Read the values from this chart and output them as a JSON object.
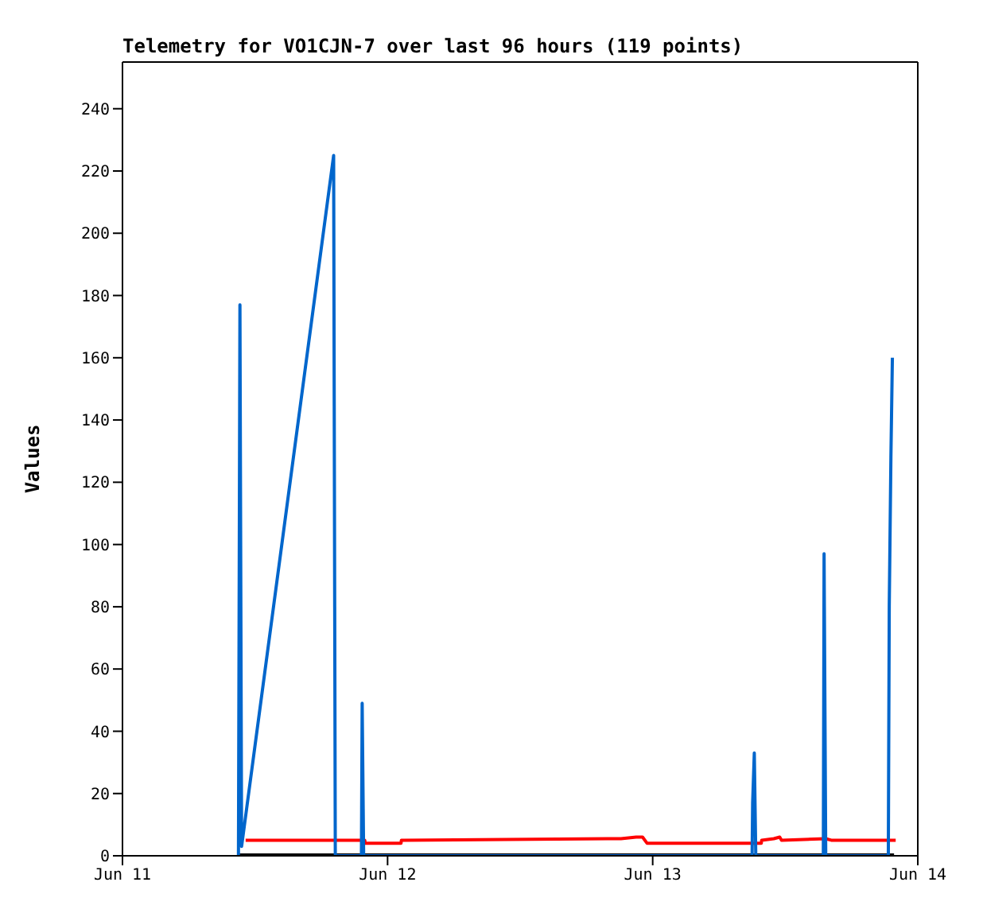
{
  "chart_data": {
    "type": "line",
    "title": "Telemetry for VO1CJN-7 over last 96 hours (119 points)",
    "ylabel": "Values",
    "xlim": [
      "--06-11T00:00",
      "--06-14T00:00"
    ],
    "xticks": [
      {
        "value": "--06-11T00:00",
        "label": "Jun 11"
      },
      {
        "value": "--06-12T00:00",
        "label": "Jun 12"
      },
      {
        "value": "--06-13T00:00",
        "label": "Jun 13"
      },
      {
        "value": "--06-14T00:00",
        "label": "Jun 14"
      }
    ],
    "ylim": [
      0,
      255
    ],
    "yticks": [
      0,
      20,
      40,
      60,
      80,
      100,
      120,
      140,
      160,
      180,
      200,
      220,
      240
    ],
    "grid": false,
    "legend": false,
    "marker": "none",
    "line_style": "solid",
    "series": [
      {
        "color": "#000000",
        "x": [
          "--06-11T10:30",
          "--06-13T21:51"
        ],
        "values": [
          0,
          0
        ]
      },
      {
        "color": "#ff0000",
        "x": [
          "--06-11T11:09",
          "--06-11T21:56",
          "--06-11T21:58",
          "--06-12T01:13",
          "--06-12T01:15",
          "--06-12T21:08",
          "--06-12T22:30",
          "--06-12T23:05",
          "--06-12T23:30",
          "--06-13T09:50",
          "--06-13T09:52",
          "--06-13T10:58",
          "--06-13T11:30",
          "--06-13T11:40",
          "--06-13T15:40",
          "--06-13T16:10",
          "--06-13T22:00"
        ],
        "values": [
          5,
          5,
          4,
          4,
          5,
          5.5,
          6,
          6,
          4,
          4,
          5,
          5.5,
          6,
          5,
          5.5,
          5,
          5
        ]
      },
      {
        "color": "#0066cc",
        "x": [
          "--06-11T10:30",
          "--06-11T10:34",
          "--06-11T10:38",
          "--06-11T10:47",
          "--06-11T19:07",
          "--06-11T19:16",
          "--06-11T21:38",
          "--06-11T21:42",
          "--06-11T21:50",
          "--06-13T09:00",
          "--06-13T09:03",
          "--06-13T09:12",
          "--06-13T09:20",
          "--06-13T15:27",
          "--06-13T15:31",
          "--06-13T15:40",
          "--06-13T21:20",
          "--06-13T21:25",
          "--06-13T21:34",
          "--06-13T21:42"
        ],
        "values": [
          0,
          88,
          177,
          3,
          225,
          0,
          0,
          49,
          0,
          0,
          17,
          33,
          0,
          0,
          97,
          0,
          0,
          80,
          128,
          160
        ]
      }
    ]
  }
}
